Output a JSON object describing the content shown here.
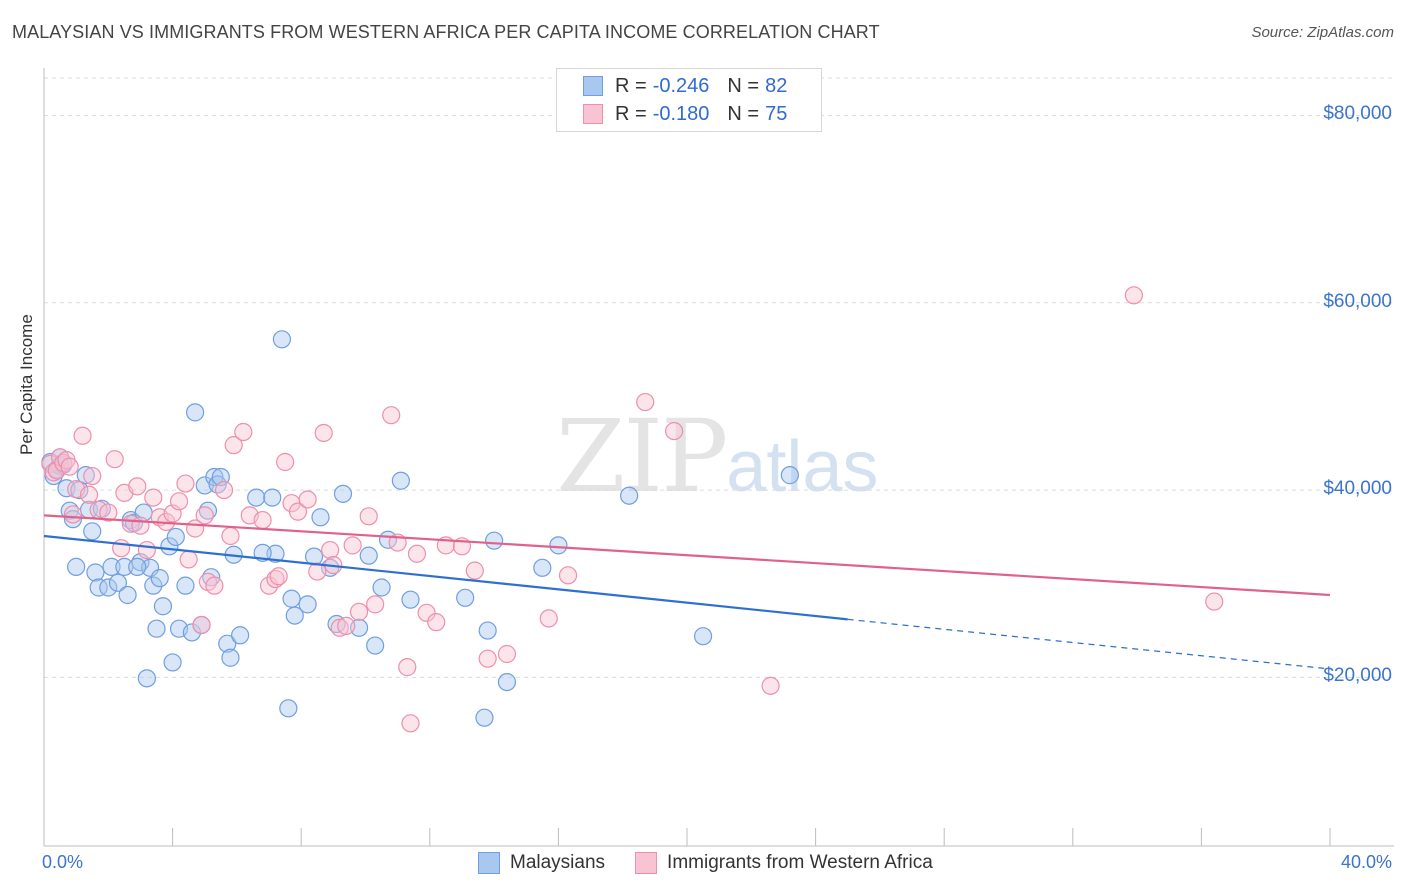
{
  "header": {
    "title": "MALAYSIAN VS IMMIGRANTS FROM WESTERN AFRICA PER CAPITA INCOME CORRELATION CHART",
    "source": "Source: ZipAtlas.com"
  },
  "watermark": {
    "zip": "ZIP",
    "atlas": "atlas"
  },
  "legend": {
    "r_label": "R =",
    "n_label": "N =",
    "series": [
      {
        "r": "-0.246",
        "n": "82",
        "color": "#a9c8f0",
        "border": "#6f9fe0"
      },
      {
        "r": "-0.180",
        "n": "75",
        "color": "#f8c3d2",
        "border": "#ee8fab"
      }
    ]
  },
  "bottom_legend": {
    "items": [
      {
        "label": "Malaysians"
      },
      {
        "label": "Immigrants from Western Africa"
      }
    ]
  },
  "chart_data": {
    "type": "scatter",
    "title": "MALAYSIAN VS IMMIGRANTS FROM WESTERN AFRICA PER CAPITA INCOME CORRELATION CHART",
    "xlabel": "",
    "ylabel": "Per Capita Income",
    "xlim": [
      0,
      40
    ],
    "ylim": [
      2000,
      84000
    ],
    "x_tick_labels": [
      "0.0%",
      "40.0%"
    ],
    "y_ticks": [
      20000,
      40000,
      60000,
      80000
    ],
    "y_tick_labels": [
      "$20,000",
      "$40,000",
      "$60,000",
      "$80,000"
    ],
    "grid": true,
    "legend_position": "top-center",
    "series": [
      {
        "name": "Malaysians",
        "color": "#6f9fe0",
        "fill": "#a9c8f0",
        "trend": {
          "x0": 0,
          "y0": 35100,
          "x1": 25,
          "y1": 26200,
          "dash_to_x": 40,
          "dash_to_y": 20900
        },
        "points": [
          [
            0.2,
            43000
          ],
          [
            0.3,
            41500
          ],
          [
            0.4,
            42200
          ],
          [
            0.5,
            42600
          ],
          [
            0.6,
            42700
          ],
          [
            0.7,
            40200
          ],
          [
            0.8,
            37800
          ],
          [
            0.9,
            36900
          ],
          [
            1.0,
            31800
          ],
          [
            1.1,
            40000
          ],
          [
            1.4,
            37900
          ],
          [
            1.5,
            35600
          ],
          [
            1.6,
            31200
          ],
          [
            1.7,
            29600
          ],
          [
            1.8,
            38000
          ],
          [
            2.0,
            29600
          ],
          [
            2.1,
            31800
          ],
          [
            2.3,
            30100
          ],
          [
            2.5,
            31800
          ],
          [
            2.6,
            28800
          ],
          [
            2.7,
            36800
          ],
          [
            2.8,
            36500
          ],
          [
            3.0,
            32300
          ],
          [
            3.1,
            37600
          ],
          [
            3.2,
            19900
          ],
          [
            3.3,
            31700
          ],
          [
            3.4,
            29800
          ],
          [
            3.5,
            25200
          ],
          [
            3.6,
            30600
          ],
          [
            3.7,
            27600
          ],
          [
            3.9,
            34000
          ],
          [
            4.0,
            21600
          ],
          [
            4.1,
            35000
          ],
          [
            4.2,
            25200
          ],
          [
            4.4,
            29800
          ],
          [
            4.6,
            24800
          ],
          [
            4.7,
            48300
          ],
          [
            4.9,
            25600
          ],
          [
            5.0,
            40500
          ],
          [
            5.1,
            37800
          ],
          [
            5.2,
            30700
          ],
          [
            5.3,
            41400
          ],
          [
            5.4,
            40600
          ],
          [
            5.5,
            41400
          ],
          [
            5.7,
            23600
          ],
          [
            5.8,
            22100
          ],
          [
            5.9,
            33100
          ],
          [
            6.1,
            24500
          ],
          [
            6.6,
            39200
          ],
          [
            7.1,
            39200
          ],
          [
            7.2,
            33200
          ],
          [
            7.4,
            56100
          ],
          [
            7.6,
            16700
          ],
          [
            7.7,
            28400
          ],
          [
            7.8,
            26600
          ],
          [
            8.2,
            27800
          ],
          [
            8.4,
            32900
          ],
          [
            8.6,
            37100
          ],
          [
            8.9,
            31700
          ],
          [
            9.1,
            25700
          ],
          [
            9.3,
            39600
          ],
          [
            9.8,
            25300
          ],
          [
            10.1,
            33000
          ],
          [
            10.3,
            23400
          ],
          [
            10.5,
            29600
          ],
          [
            10.7,
            34700
          ],
          [
            11.1,
            41000
          ],
          [
            11.4,
            28300
          ],
          [
            13.1,
            28500
          ],
          [
            13.7,
            15700
          ],
          [
            13.8,
            25000
          ],
          [
            14.0,
            34600
          ],
          [
            14.4,
            19500
          ],
          [
            15.5,
            31700
          ],
          [
            16.0,
            34100
          ],
          [
            18.2,
            39400
          ],
          [
            20.5,
            24400
          ],
          [
            23.2,
            41600
          ],
          [
            0.5,
            43500
          ],
          [
            1.3,
            41600
          ],
          [
            2.9,
            31800
          ],
          [
            6.8,
            33300
          ]
        ]
      },
      {
        "name": "Immigrants from Western Africa",
        "color": "#ee8fab",
        "fill": "#f8c3d2",
        "trend": {
          "x0": 0,
          "y0": 37300,
          "x1": 40,
          "y1": 28800
        },
        "points": [
          [
            0.2,
            42800
          ],
          [
            0.3,
            41900
          ],
          [
            0.4,
            42100
          ],
          [
            0.5,
            43500
          ],
          [
            0.6,
            42900
          ],
          [
            0.7,
            43200
          ],
          [
            0.8,
            42500
          ],
          [
            1.0,
            40100
          ],
          [
            1.2,
            45800
          ],
          [
            1.4,
            39500
          ],
          [
            1.5,
            41500
          ],
          [
            1.7,
            37900
          ],
          [
            2.0,
            37600
          ],
          [
            2.2,
            43300
          ],
          [
            2.5,
            39700
          ],
          [
            2.7,
            36400
          ],
          [
            2.9,
            40400
          ],
          [
            3.0,
            36200
          ],
          [
            3.2,
            33600
          ],
          [
            3.4,
            39200
          ],
          [
            3.6,
            37100
          ],
          [
            3.8,
            36600
          ],
          [
            4.0,
            37500
          ],
          [
            4.2,
            38800
          ],
          [
            4.4,
            40700
          ],
          [
            4.5,
            32600
          ],
          [
            4.7,
            35900
          ],
          [
            4.9,
            25600
          ],
          [
            5.1,
            30200
          ],
          [
            5.3,
            29800
          ],
          [
            5.6,
            40000
          ],
          [
            5.8,
            35100
          ],
          [
            5.9,
            44800
          ],
          [
            6.2,
            46200
          ],
          [
            6.4,
            37300
          ],
          [
            6.8,
            36800
          ],
          [
            7.0,
            29800
          ],
          [
            7.2,
            30500
          ],
          [
            7.5,
            43000
          ],
          [
            7.7,
            38600
          ],
          [
            7.9,
            37700
          ],
          [
            8.2,
            39000
          ],
          [
            8.5,
            31300
          ],
          [
            8.7,
            46100
          ],
          [
            8.9,
            33600
          ],
          [
            9.2,
            25300
          ],
          [
            9.4,
            25500
          ],
          [
            9.6,
            34100
          ],
          [
            9.8,
            27000
          ],
          [
            10.1,
            37200
          ],
          [
            10.3,
            27800
          ],
          [
            10.8,
            48000
          ],
          [
            11.0,
            34400
          ],
          [
            11.3,
            21100
          ],
          [
            11.4,
            15100
          ],
          [
            11.6,
            33200
          ],
          [
            11.9,
            26900
          ],
          [
            12.2,
            25900
          ],
          [
            12.5,
            34100
          ],
          [
            13.0,
            34000
          ],
          [
            13.4,
            31400
          ],
          [
            13.8,
            22000
          ],
          [
            14.4,
            22500
          ],
          [
            15.7,
            26300
          ],
          [
            16.3,
            30900
          ],
          [
            18.7,
            49400
          ],
          [
            19.6,
            46300
          ],
          [
            22.6,
            19100
          ],
          [
            33.9,
            60800
          ],
          [
            36.4,
            28100
          ],
          [
            0.9,
            37400
          ],
          [
            2.4,
            33800
          ],
          [
            5.0,
            37300
          ],
          [
            7.3,
            30800
          ],
          [
            9.0,
            32000
          ]
        ]
      }
    ]
  }
}
